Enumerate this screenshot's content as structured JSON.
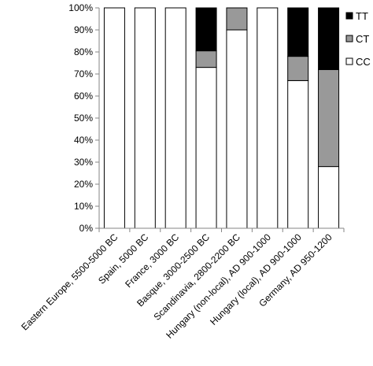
{
  "chart_data": {
    "type": "bar",
    "stacked": true,
    "categories": [
      "Eastern Europe, 5500-5000 BC",
      "Spain, 5000 BC",
      "France, 3000 BC",
      "Basque, 3000-2500 BC",
      "Scandinavia, 2800-2200 BC",
      "Hungary (non-local), AD 900-1000",
      "Hungary (local), AD 900-1000",
      "Germany, AD 950-1200"
    ],
    "series": [
      {
        "name": "CC",
        "color": "#ffffff",
        "values": [
          100,
          100,
          100,
          73,
          90,
          100,
          67,
          28
        ]
      },
      {
        "name": "CT",
        "color": "#999999",
        "values": [
          0,
          0,
          0,
          7.5,
          10,
          0,
          11,
          44
        ]
      },
      {
        "name": "TT",
        "color": "#000000",
        "values": [
          0,
          0,
          0,
          19.5,
          0,
          0,
          22,
          28
        ]
      }
    ],
    "legend_order": [
      "TT",
      "CT",
      "CC"
    ],
    "legend_position": "right",
    "ylim": [
      0,
      100
    ],
    "yticks": [
      "0%",
      "10%",
      "20%",
      "30%",
      "40%",
      "50%",
      "60%",
      "70%",
      "80%",
      "90%",
      "100%"
    ],
    "grid": false
  }
}
